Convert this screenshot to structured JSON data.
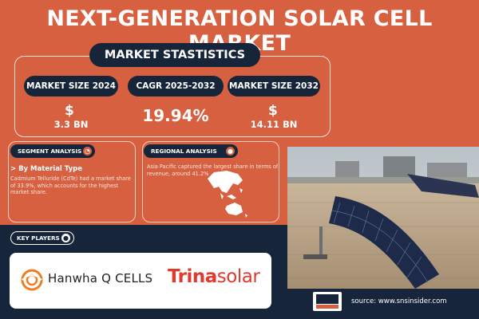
{
  "title": "NEXT-GENERATION SOLAR CELL MARKET",
  "stats": {
    "heading": "MARKET STASTISTICS",
    "items": [
      {
        "label": "MARKET SIZE 2024",
        "currency": "$",
        "value": "3.3 BN"
      },
      {
        "label": "CAGR 2025-2032",
        "value": "19.94%"
      },
      {
        "label": "MARKET SIZE 2032",
        "currency": "$",
        "value": "14.11 BN"
      }
    ]
  },
  "segment": {
    "heading": "SEGMENT ANALYSIS",
    "sub": "> By Material Type",
    "desc": "Cadmium Telluride (CdTe) had a market share of 33.9%, which accounts for the highest market share."
  },
  "regional": {
    "heading": "REGIONAL ANALYSIS",
    "desc": "Asia Pacific captured the largest share in terms of revenue, around 41.2%"
  },
  "key_players": {
    "heading": "KEY PLAYERS",
    "companies": [
      {
        "name_text": "Hanwha Q CELLS"
      },
      {
        "name_main": "Trina",
        "name_suffix": "solar"
      }
    ]
  },
  "footer": {
    "source": "source: www.snsinsider.com"
  },
  "colors": {
    "background": "#d6603f",
    "navy": "#17253a",
    "accent_red": "#e03a2f"
  },
  "icons": {
    "segment": "pie-chart-icon",
    "regional": "globe-icon",
    "key_players": "people-icon"
  }
}
